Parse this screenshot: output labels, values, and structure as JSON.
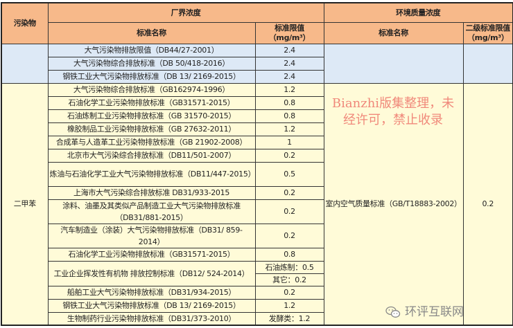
{
  "header": {
    "pollutant": "污染物",
    "boundary": "厂界浓度",
    "environment": "环境质量浓度",
    "std_name": "标准名称",
    "limit": "标准限值（mg/m³）",
    "env_std_name": "标准名称",
    "env_limit": "二级标准限值（mg/m³）"
  },
  "blue_group": {
    "pollutant": "",
    "rows": [
      {
        "name": "大气污染物排放限值（DB44/27-2001）",
        "value": "2.4"
      },
      {
        "name": "大气污染物综合排放标准（DB 50/418-2016）",
        "value": "2.4"
      },
      {
        "name": "钢铁工业大气污染物排放标准（DB 13/ 2169-2015）",
        "value": "2.4"
      }
    ]
  },
  "yellow_group": {
    "pollutant": "二甲苯",
    "env_name": "室内空气质量标准（GB/T18883-2002）",
    "env_value": "0.2",
    "rows": [
      {
        "name": "大气污染物综合排放标准（GB162974-1996）",
        "value": "1.2"
      },
      {
        "name": "石油化学工业污染物排放标准（GB31571-2015）",
        "value": "0.8"
      },
      {
        "name": "石油炼制工业污染物排放标准（GB 31570-2015）",
        "value": "0.8"
      },
      {
        "name": "橡胶制品工业污染物排放标准（GB 27632-2011）",
        "value": "1.2"
      },
      {
        "name": "合成革与人造革工业污染物排放标准（GB 21902-2008）",
        "value": "1"
      },
      {
        "name": "北京市大气污染综合排放标准（DB11/501-2007）",
        "value": "0.2"
      },
      {
        "name": "炼油与石油化学工业大气污染物排放标准（DB11/447-2015）",
        "value": "0.5",
        "tall": true
      },
      {
        "name": "上海市大气污染综合排放标准 DB31/933-2015",
        "value": "0.2"
      },
      {
        "name": "涂料、油墨及其类似产品制造工业大气污染物排放标准（DB31/881-2015）",
        "value": "0.2",
        "tall": true
      },
      {
        "name": "汽车制造业（涂装）大气污染物排放标准（DB31/ 859-2014）",
        "value": "0.2"
      },
      {
        "name": "石油化学工业污染物排放标准（GB31571-2015）",
        "value": "0.8"
      },
      {
        "name": "工业企业挥发性有机物 排放控制标准（DB12/ 524-2014）",
        "values": [
          "石油炼制：0.5",
          "其它：0.2"
        ]
      },
      {
        "name": "船舶工业大气污染物排放标准（DB31/934-2015）",
        "value": "0.2"
      },
      {
        "name": "钢铁工业大气污染物排放标准（DB 13/ 2169-2015）",
        "value": "1.2"
      },
      {
        "name": "生物制药行业污染物排放标准（DB31/373-2010）",
        "value": "发酵类：1.2"
      }
    ]
  },
  "watermark": "Bianzhi版集整理，未经许可，禁止收录",
  "logo": {
    "icon": "wechat-icon",
    "text": "环评互联网"
  },
  "colors": {
    "header": "#f7b98a",
    "blue": "#dde9f6",
    "yellow": "#fffbd8",
    "watermark": "#e63c3c"
  }
}
